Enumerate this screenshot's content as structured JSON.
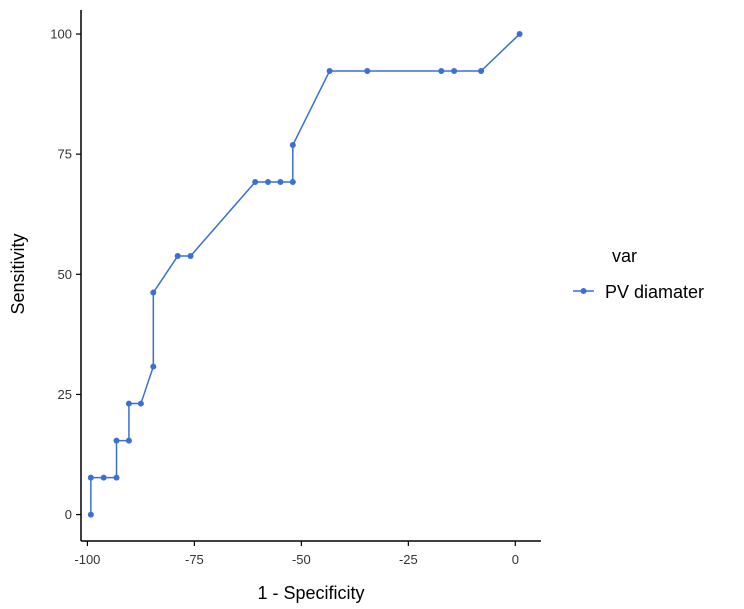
{
  "chart_data": {
    "type": "line",
    "xlabel": "1 - Specificity",
    "ylabel": "Sensitivity",
    "xlim": [
      -101.5,
      6
    ],
    "ylim": [
      -5.5,
      105
    ],
    "xticks": [
      -100,
      -75,
      -50,
      -25,
      0
    ],
    "xtick_labels": [
      "-100",
      "-75",
      "-50",
      "-25",
      "0"
    ],
    "yticks": [
      0,
      25,
      50,
      75,
      100
    ],
    "ytick_labels": [
      "0",
      "25",
      "50",
      "75",
      "100"
    ],
    "grid": false,
    "legend": {
      "title": "var",
      "placement": "right"
    },
    "series": [
      {
        "name": "PV diamater",
        "color": "#3a6fd6",
        "x": [
          -99.2,
          -99.2,
          -96.2,
          -93.2,
          -93.2,
          -90.3,
          -90.3,
          -87.5,
          -84.6,
          -84.6,
          -78.9,
          -75.9,
          -60.8,
          -57.8,
          -54.9,
          -52.0,
          -52.0,
          -43.4,
          -34.6,
          -17.3,
          -14.3,
          -8.0,
          1.0
        ],
        "y": [
          0,
          7.7,
          7.7,
          7.7,
          15.4,
          15.4,
          23.1,
          23.1,
          30.8,
          46.2,
          53.8,
          53.8,
          69.2,
          69.2,
          69.2,
          69.2,
          76.9,
          92.3,
          92.3,
          92.3,
          92.3,
          92.3,
          100
        ]
      }
    ]
  }
}
